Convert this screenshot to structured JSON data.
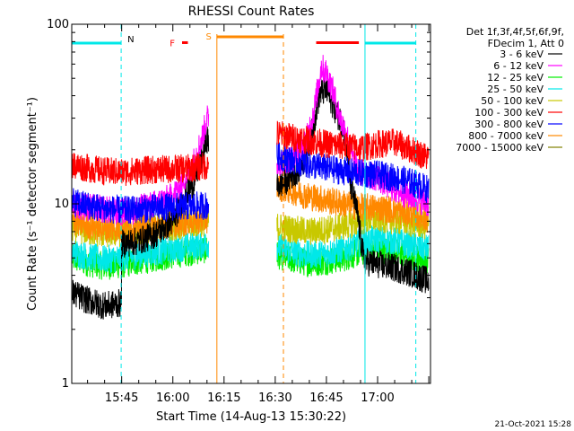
{
  "chart_data": {
    "type": "line",
    "title": "RHESSI Count Rates",
    "xlabel": "Start Time (14-Aug-13 15:30:22)",
    "ylabel": "Count Rate (s⁻¹ detector segment⁻¹)",
    "y_scale": "log",
    "ylim": [
      1,
      100
    ],
    "xlim_minutes_after_1530": [
      0.37,
      105.5
    ],
    "x_ticks": [
      {
        "label": "15:45",
        "minute": 15
      },
      {
        "label": "16:00",
        "minute": 30
      },
      {
        "label": "16:15",
        "minute": 45
      },
      {
        "label": "16:30",
        "minute": 60
      },
      {
        "label": "16:45",
        "minute": 75
      },
      {
        "label": "17:00",
        "minute": 90
      }
    ],
    "y_ticks": [
      {
        "label": "1",
        "value": 1
      },
      {
        "label": "10",
        "value": 10
      },
      {
        "label": "100",
        "value": 100
      }
    ],
    "legend_header": [
      "Det 1f,3f,4f,5f,6f,9f,",
      "FDecim 1, Att 0"
    ],
    "legend_position": "top-right",
    "timestamp": "21-Oct-2021 15:28",
    "data_gap_minutes": [
      40.5,
      60.5
    ],
    "series": [
      {
        "name": "3 - 6 keV",
        "color": "#000000",
        "points": [
          [
            0.5,
            3.2
          ],
          [
            5,
            2.9
          ],
          [
            10,
            2.7
          ],
          [
            14.9,
            2.8
          ],
          [
            15,
            6.0
          ],
          [
            20,
            6.2
          ],
          [
            25,
            6.8
          ],
          [
            30,
            8.0
          ],
          [
            33,
            10.5
          ],
          [
            36,
            13.0
          ],
          [
            38.5,
            18.0
          ],
          [
            40,
            23.0
          ],
          [
            60.6,
            12.5
          ],
          [
            64,
            13.8
          ],
          [
            68,
            16.5
          ],
          [
            71,
            26.0
          ],
          [
            73,
            41.0
          ],
          [
            75,
            43.0
          ],
          [
            76.5,
            37.0
          ],
          [
            78,
            32.0
          ],
          [
            80,
            27.0
          ],
          [
            82,
            13.0
          ],
          [
            84,
            9.0
          ],
          [
            86,
            4.8
          ],
          [
            90,
            4.6
          ],
          [
            95,
            4.4
          ],
          [
            100,
            4.1
          ],
          [
            105,
            3.7
          ]
        ]
      },
      {
        "name": "6 - 12 keV",
        "color": "#ff00ff",
        "points": [
          [
            0.5,
            10.0
          ],
          [
            5,
            9.6
          ],
          [
            10,
            9.3
          ],
          [
            15,
            9.0
          ],
          [
            20,
            9.4
          ],
          [
            25,
            10.0
          ],
          [
            30,
            11.0
          ],
          [
            33,
            13.5
          ],
          [
            36,
            17.0
          ],
          [
            38.5,
            23.0
          ],
          [
            40,
            30.0
          ],
          [
            60.6,
            17.0
          ],
          [
            65,
            18.0
          ],
          [
            69,
            22.0
          ],
          [
            71.5,
            34.0
          ],
          [
            73.5,
            58.0
          ],
          [
            75,
            54.0
          ],
          [
            77,
            42.0
          ],
          [
            79,
            30.0
          ],
          [
            81,
            24.0
          ],
          [
            83,
            17.0
          ],
          [
            85,
            15.0
          ],
          [
            90,
            14.0
          ],
          [
            95,
            12.0
          ],
          [
            100,
            11.0
          ],
          [
            105,
            10.0
          ]
        ]
      },
      {
        "name": "12 - 25 keV",
        "color": "#00ee00",
        "points": [
          [
            0.5,
            5.0
          ],
          [
            5,
            4.7
          ],
          [
            10,
            4.5
          ],
          [
            15,
            4.6
          ],
          [
            20,
            4.8
          ],
          [
            25,
            5.0
          ],
          [
            30,
            5.2
          ],
          [
            35,
            5.4
          ],
          [
            40,
            5.6
          ],
          [
            60.6,
            5.2
          ],
          [
            65,
            4.9
          ],
          [
            70,
            4.7
          ],
          [
            75,
            4.8
          ],
          [
            80,
            5.0
          ],
          [
            85,
            5.4
          ],
          [
            90,
            5.6
          ],
          [
            95,
            5.4
          ],
          [
            100,
            5.1
          ],
          [
            105,
            4.8
          ]
        ]
      },
      {
        "name": "25 - 50 keV",
        "color": "#00e8e8",
        "points": [
          [
            0.5,
            5.4
          ],
          [
            5,
            5.1
          ],
          [
            10,
            4.9
          ],
          [
            15,
            5.0
          ],
          [
            20,
            5.2
          ],
          [
            25,
            5.4
          ],
          [
            30,
            5.6
          ],
          [
            35,
            5.8
          ],
          [
            40,
            6.0
          ],
          [
            60.6,
            5.8
          ],
          [
            65,
            5.4
          ],
          [
            70,
            5.2
          ],
          [
            75,
            5.3
          ],
          [
            80,
            5.6
          ],
          [
            85,
            6.1
          ],
          [
            90,
            6.4
          ],
          [
            95,
            6.2
          ],
          [
            100,
            5.9
          ],
          [
            105,
            5.6
          ]
        ]
      },
      {
        "name": "50 - 100 keV",
        "color": "#c8c800",
        "points": [
          [
            0.5,
            7.3
          ],
          [
            5,
            7.0
          ],
          [
            10,
            6.8
          ],
          [
            15,
            6.9
          ],
          [
            20,
            7.1
          ],
          [
            25,
            7.3
          ],
          [
            30,
            7.5
          ],
          [
            35,
            7.7
          ],
          [
            40,
            7.9
          ],
          [
            60.6,
            7.5
          ],
          [
            65,
            7.2
          ],
          [
            70,
            7.0
          ],
          [
            75,
            7.2
          ],
          [
            80,
            7.5
          ],
          [
            85,
            8.0
          ],
          [
            90,
            8.3
          ],
          [
            95,
            8.1
          ],
          [
            100,
            7.8
          ],
          [
            105,
            7.5
          ]
        ]
      },
      {
        "name": "100 - 300 keV",
        "color": "#ff0000",
        "points": [
          [
            0.5,
            16.5
          ],
          [
            5,
            15.8
          ],
          [
            10,
            15.2
          ],
          [
            15,
            15.0
          ],
          [
            20,
            15.3
          ],
          [
            25,
            15.5
          ],
          [
            30,
            15.6
          ],
          [
            35,
            15.8
          ],
          [
            40,
            16.3
          ],
          [
            60.6,
            24.5
          ],
          [
            65,
            23.5
          ],
          [
            70,
            22.5
          ],
          [
            75,
            21.5
          ],
          [
            80,
            21.0
          ],
          [
            85,
            20.5
          ],
          [
            90,
            21.5
          ],
          [
            95,
            22.0
          ],
          [
            100,
            20.0
          ],
          [
            105,
            18.0
          ]
        ]
      },
      {
        "name": "300 - 800 keV",
        "color": "#0000ff",
        "points": [
          [
            0.5,
            10.2
          ],
          [
            5,
            9.8
          ],
          [
            10,
            9.4
          ],
          [
            15,
            9.2
          ],
          [
            20,
            9.3
          ],
          [
            25,
            9.5
          ],
          [
            30,
            9.6
          ],
          [
            35,
            9.7
          ],
          [
            40,
            9.8
          ],
          [
            60.6,
            18.5
          ],
          [
            65,
            17.5
          ],
          [
            70,
            16.5
          ],
          [
            75,
            15.8
          ],
          [
            80,
            15.2
          ],
          [
            85,
            14.8
          ],
          [
            90,
            14.5
          ],
          [
            95,
            14.0
          ],
          [
            100,
            13.2
          ],
          [
            105,
            12.0
          ]
        ]
      },
      {
        "name": "800 - 7000 keV",
        "color": "#ff8800",
        "points": [
          [
            0.5,
            8.0
          ],
          [
            5,
            7.6
          ],
          [
            10,
            7.3
          ],
          [
            15,
            7.3
          ],
          [
            20,
            7.4
          ],
          [
            25,
            7.6
          ],
          [
            30,
            7.8
          ],
          [
            35,
            8.0
          ],
          [
            40,
            8.2
          ],
          [
            60.6,
            12.5
          ],
          [
            65,
            11.8
          ],
          [
            70,
            11.0
          ],
          [
            75,
            10.5
          ],
          [
            80,
            10.0
          ],
          [
            85,
            9.6
          ],
          [
            90,
            9.5
          ],
          [
            95,
            9.2
          ],
          [
            100,
            8.8
          ],
          [
            105,
            8.2
          ]
        ]
      },
      {
        "name": "7000 - 15000 keV",
        "color": "#808000",
        "points": []
      }
    ],
    "annotations": {
      "night_bars": [
        {
          "label": "N",
          "start_minute": 0.37,
          "end_minute": 14.85,
          "color": "#00e8e8"
        },
        {
          "label": "",
          "start_minute": 86.3,
          "end_minute": 101.2,
          "color": "#00e8e8"
        }
      ],
      "night_boundaries": [
        {
          "minute": 0.37,
          "style": "solid",
          "color": "#00e8e8"
        },
        {
          "minute": 14.85,
          "style": "dashed",
          "color": "#00e8e8"
        },
        {
          "minute": 86.3,
          "style": "solid",
          "color": "#00e8e8"
        },
        {
          "minute": 101.2,
          "style": "dashed",
          "color": "#00e8e8"
        }
      ],
      "saa": {
        "label": "S",
        "start_minute": 42.9,
        "end_minute": 62.4,
        "color": "#ff8800"
      },
      "flare_flag": {
        "label": "F",
        "start_minute": 32.7,
        "end_minute": 34.4,
        "level_value": 79,
        "color": "#ff0000"
      },
      "flare_bar": {
        "start_minute": 72.0,
        "end_minute": 84.5,
        "level_value": 79,
        "color": "#ff0000"
      }
    }
  }
}
